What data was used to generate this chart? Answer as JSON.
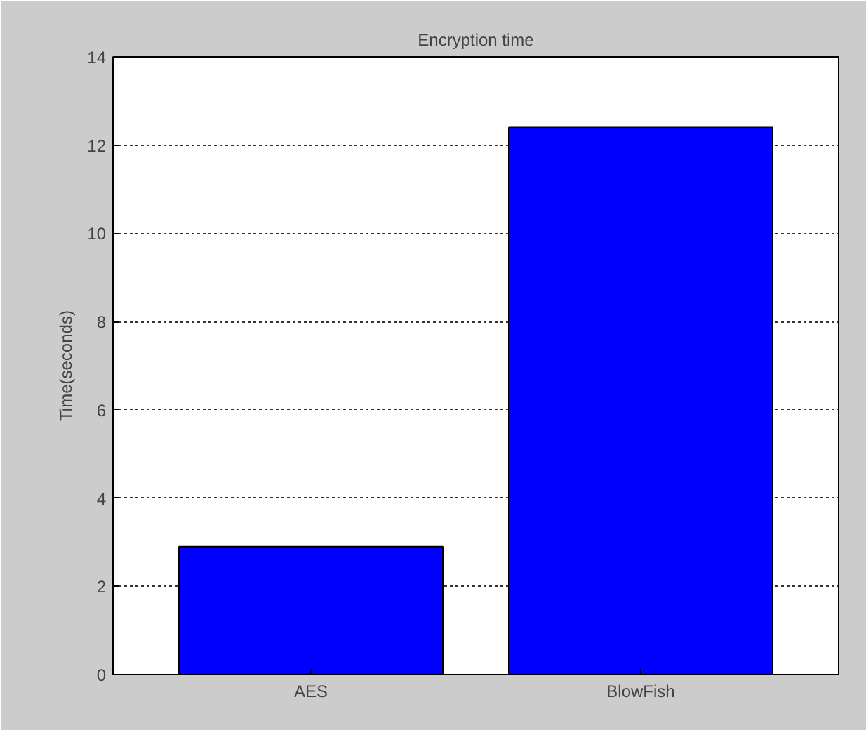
{
  "chart_data": {
    "type": "bar",
    "title": "Encryption time",
    "ylabel": "Time(seconds)",
    "categories": [
      "AES",
      "BlowFish"
    ],
    "values": [
      2.9,
      12.4
    ],
    "color": "#0000ff",
    "ylim": [
      0,
      14
    ],
    "yticks": [
      0,
      2,
      4,
      6,
      8,
      10,
      12,
      14
    ],
    "grid": "y"
  }
}
